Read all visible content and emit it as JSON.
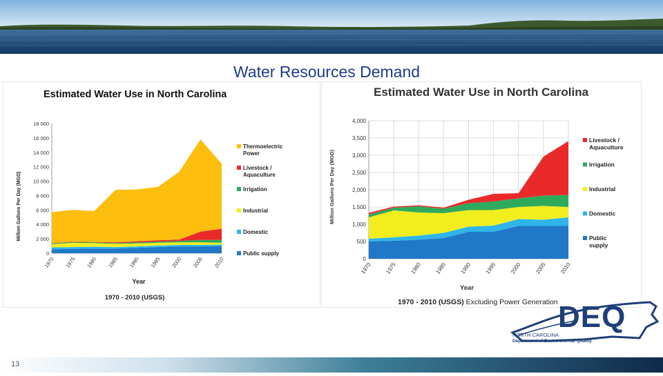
{
  "slide": {
    "title": "Water Resources Demand",
    "slide_number": "13"
  },
  "logo": {
    "letters": "DEQ",
    "line1": "NORTH CAROLINA",
    "line2": "Department of Environmental Quality"
  },
  "colors": {
    "title": "#1f3a8a",
    "footer_dark": "#0f2a4a",
    "public_supply": "#1f78c8",
    "domestic": "#2fb5ea",
    "industrial": "#f2ee1e",
    "irrigation": "#2eaa5c",
    "livestock": "#ea2a2a",
    "thermoelectric": "#fdbe0e"
  },
  "chart_data": [
    {
      "type": "area",
      "stacked": true,
      "title": "Estimated Water Use in North Carolina",
      "xlabel": "Year",
      "ylabel": "Million Gallons Per Day (MGD)",
      "footnote": "1970 - 2010 (USGS)",
      "x": [
        "1970",
        "1975",
        "1980",
        "1985",
        "1990",
        "1995",
        "2000",
        "2005",
        "2010"
      ],
      "ylim": [
        0,
        18000
      ],
      "yticks": [
        "0",
        "2 000",
        "4 000",
        "6 000",
        "8 000",
        "10 000",
        "12 000",
        "14 000",
        "16 000",
        "18 000"
      ],
      "grid": false,
      "legend_position": "right",
      "series": [
        {
          "name": "Public supply",
          "color": "#1f78c8",
          "values": [
            550,
            600,
            650,
            650,
            750,
            850,
            950,
            950,
            1000
          ]
        },
        {
          "name": "Domestic",
          "color": "#2fb5ea",
          "values": [
            250,
            250,
            250,
            200,
            200,
            200,
            200,
            200,
            200
          ]
        },
        {
          "name": "Industrial",
          "color": "#f2ee1e",
          "values": [
            450,
            600,
            500,
            450,
            400,
            400,
            350,
            350,
            250
          ]
        },
        {
          "name": "Irrigation",
          "color": "#2eaa5c",
          "values": [
            100,
            100,
            100,
            100,
            150,
            150,
            200,
            350,
            400
          ]
        },
        {
          "name": "Livestock / Aquaculture",
          "color": "#ea2a2a",
          "values": [
            50,
            50,
            50,
            100,
            150,
            200,
            200,
            1150,
            1550
          ]
        },
        {
          "name": "Thermoelectric Power",
          "color": "#fdbe0e",
          "values": [
            4300,
            4400,
            4300,
            7300,
            7200,
            7400,
            9400,
            12800,
            9000
          ]
        }
      ]
    },
    {
      "type": "area",
      "stacked": true,
      "title": "Estimated Water Use in North Carolina",
      "xlabel": "Year",
      "ylabel": "Million Gallons Per Day (MGD)",
      "footnote_bold": "1970 - 2010 (USGS)",
      "footnote_rest": " Excluding Power Generation",
      "x": [
        "1970",
        "1975",
        "1980",
        "1985",
        "1990",
        "1995",
        "2000",
        "2005",
        "2010"
      ],
      "ylim": [
        0,
        4000
      ],
      "yticks": [
        "0",
        "500",
        "1,000",
        "1,500",
        "2,000",
        "2,500",
        "3,000",
        "3,500",
        "4,000"
      ],
      "grid": true,
      "legend_position": "right",
      "series": [
        {
          "name": "Public supply",
          "color": "#1f78c8",
          "values": [
            500,
            520,
            550,
            600,
            780,
            780,
            950,
            950,
            950
          ]
        },
        {
          "name": "Domestic",
          "color": "#2fb5ea",
          "values": [
            80,
            100,
            120,
            150,
            150,
            180,
            200,
            180,
            250
          ]
        },
        {
          "name": "Industrial",
          "color": "#f2ee1e",
          "values": [
            620,
            780,
            670,
            570,
            480,
            450,
            350,
            400,
            300
          ]
        },
        {
          "name": "Irrigation",
          "color": "#2eaa5c",
          "values": [
            80,
            80,
            180,
            130,
            200,
            250,
            250,
            300,
            350
          ]
        },
        {
          "name": "Livestock / Aquaculture",
          "color": "#ea2a2a",
          "values": [
            50,
            30,
            30,
            30,
            100,
            220,
            150,
            1130,
            1560
          ]
        }
      ]
    }
  ]
}
